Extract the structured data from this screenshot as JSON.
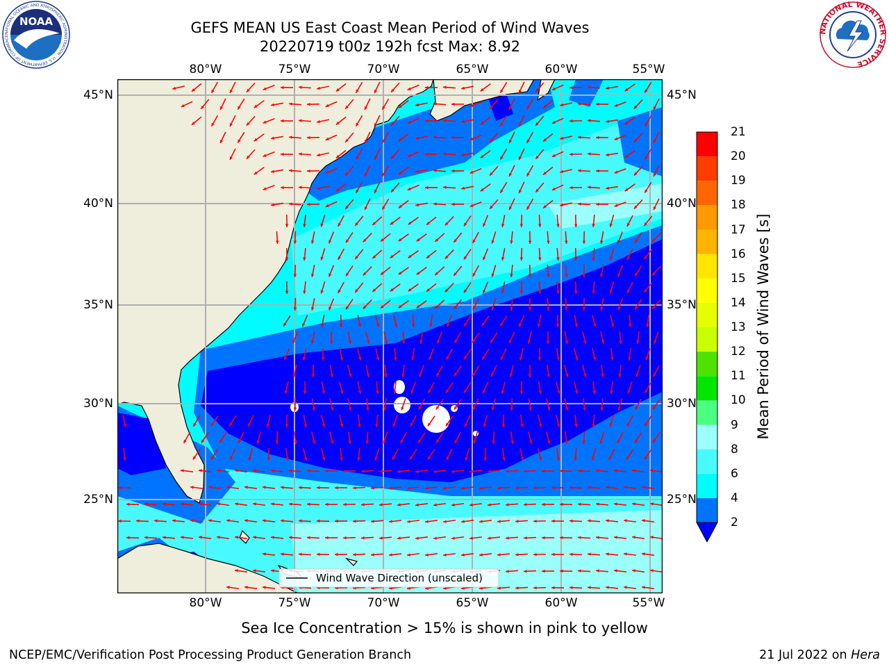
{
  "header": {
    "title_line1": "GEFS MEAN US East Coast Mean Period of Wind Waves",
    "title_line2": "20220719 t00z 192h fcst   Max: 8.92",
    "noaa_logo_text": "NOAA",
    "noaa_ring_text": "NATIONAL OCEANIC AND ATMOSPHERIC ADMINISTRATION · U.S. DEPARTMENT OF COMMERCE",
    "nws_ring_text": "NATIONAL WEATHER SERVICE"
  },
  "map": {
    "lon_ticks": [
      "80°W",
      "75°W",
      "70°W",
      "65°W",
      "60°W",
      "55°W"
    ],
    "lat_ticks": [
      "45°N",
      "40°N",
      "35°N",
      "30°N",
      "25°N"
    ],
    "legend_label": "Wind Wave Direction (unscaled)",
    "land_color": "#efeddc",
    "arrow_color": "#ff0000",
    "grid_color": "#b0b0b0"
  },
  "colorbar": {
    "label": "Mean Period of Wind Waves [s]",
    "ticks": [
      "21",
      "20",
      "19",
      "18",
      "17",
      "16",
      "15",
      "14",
      "13",
      "12",
      "11",
      "10",
      "9",
      "8",
      "6",
      "4",
      "2"
    ],
    "bands": [
      {
        "from": 2,
        "to": 4,
        "color": "#0074ff"
      },
      {
        "from": 4,
        "to": 6,
        "color": "#00fcff"
      },
      {
        "from": 6,
        "to": 8,
        "color": "#48faff"
      },
      {
        "from": 8,
        "to": 9,
        "color": "#9bfffb"
      },
      {
        "from": 9,
        "to": 10,
        "color": "#4bff82"
      },
      {
        "from": 10,
        "to": 11,
        "color": "#00e600"
      },
      {
        "from": 11,
        "to": 12,
        "color": "#4de200"
      },
      {
        "from": 12,
        "to": 13,
        "color": "#c9ff00"
      },
      {
        "from": 13,
        "to": 14,
        "color": "#e6ff00"
      },
      {
        "from": 14,
        "to": 15,
        "color": "#ffff00"
      },
      {
        "from": 15,
        "to": 16,
        "color": "#ffe600"
      },
      {
        "from": 16,
        "to": 17,
        "color": "#ffb400"
      },
      {
        "from": 17,
        "to": 18,
        "color": "#ff9a00"
      },
      {
        "from": 18,
        "to": 19,
        "color": "#ff6600"
      },
      {
        "from": 19,
        "to": 20,
        "color": "#ff3c00"
      },
      {
        "from": 20,
        "to": 21,
        "color": "#ff0000"
      }
    ],
    "under_color": "#0000ff"
  },
  "captions": {
    "sea_ice_note": "Sea Ice Concentration > 15% is shown in pink to yellow",
    "footer_left": "NCEP/EMC/Verification Post Processing Product Generation Branch",
    "footer_right_prefix": "21 Jul 2022 on ",
    "footer_right_machine": "Hera"
  }
}
